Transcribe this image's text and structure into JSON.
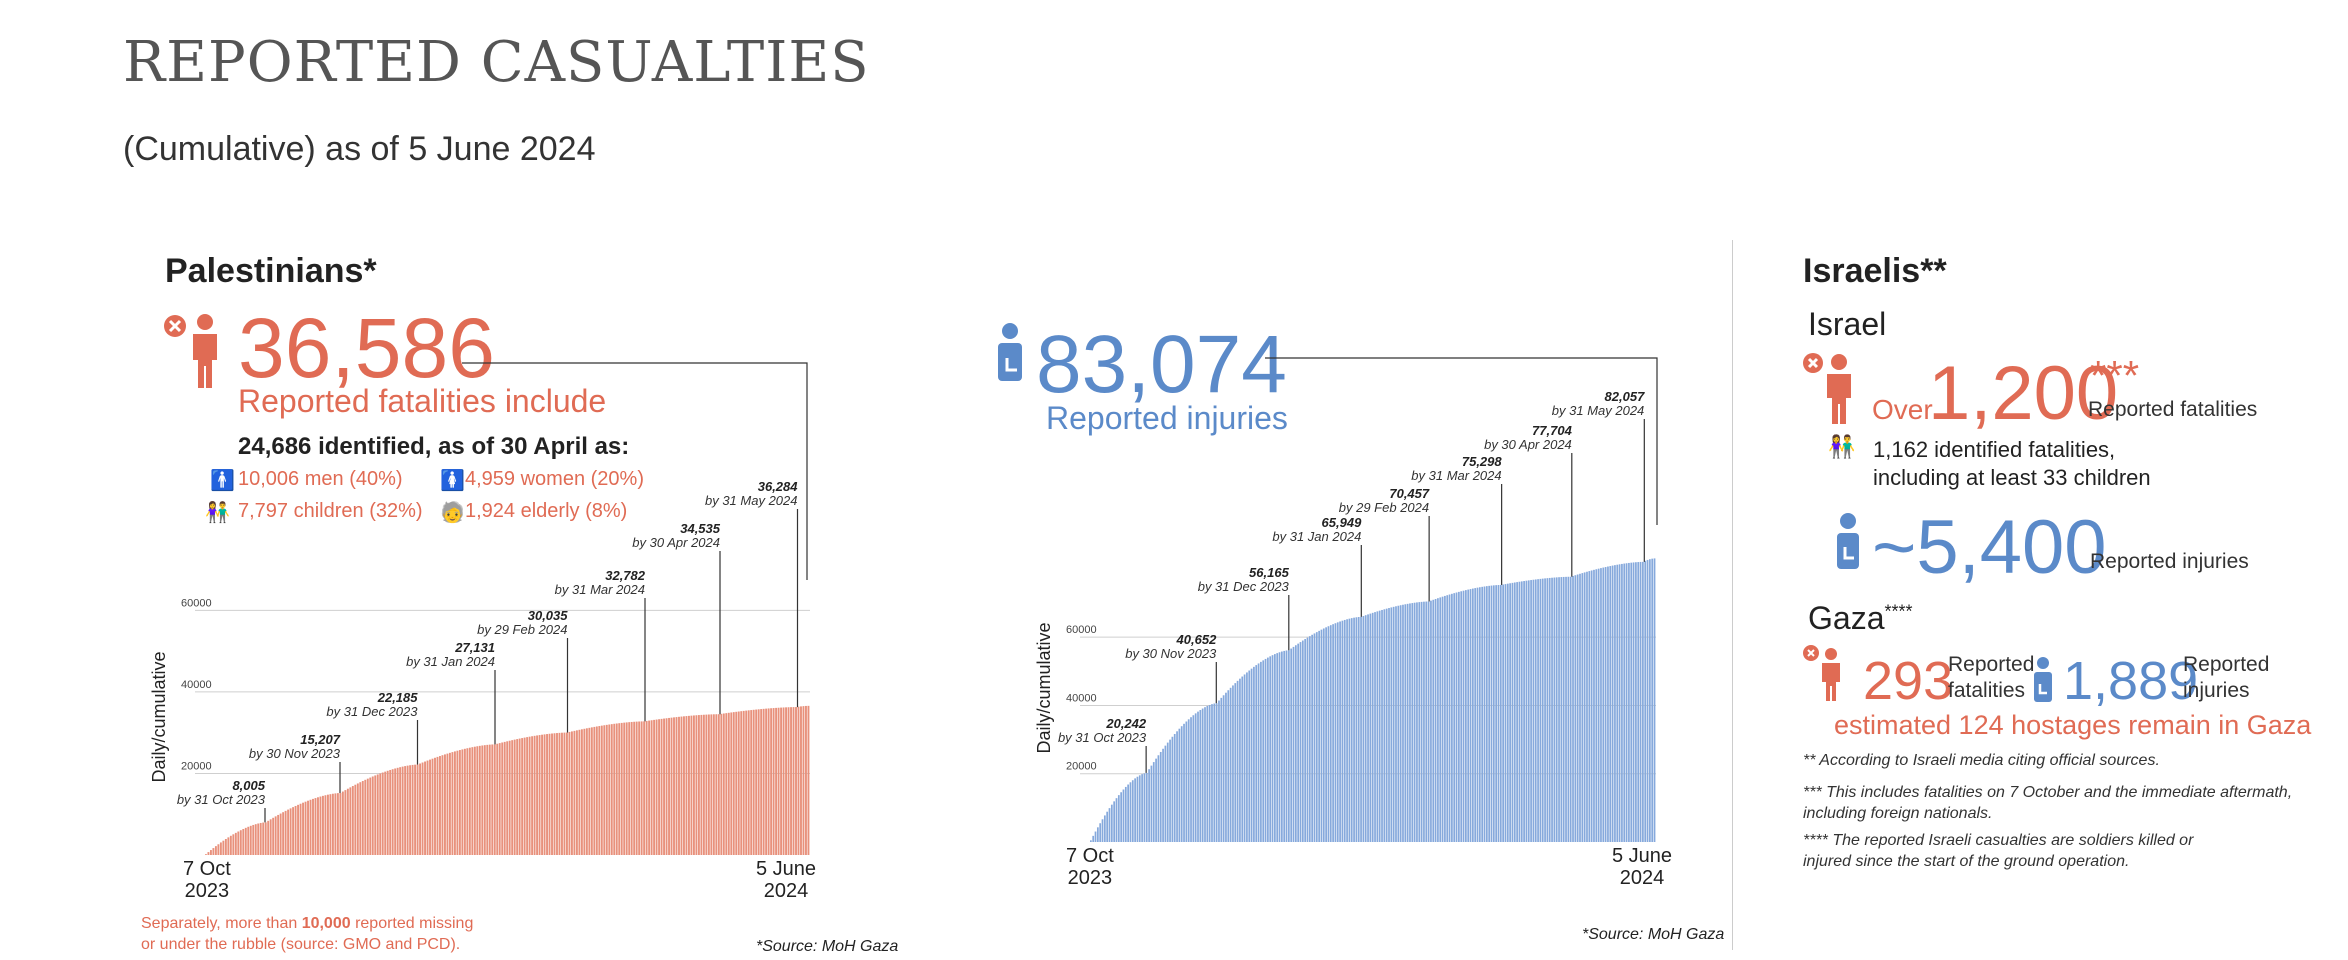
{
  "title": "REPORTED CASUALTIES",
  "subtitle": "(Cumulative) as of 5 June 2024",
  "palestinians": {
    "heading": "Palestinians*",
    "fatalities_value": "36,586",
    "fatalities_label": "Reported fatalities include",
    "identified": "24,686 identified, as of 30 April as:",
    "men": "10,006 men (40%)",
    "women": "4,959 women (20%)",
    "children": "7,797 children (32%)",
    "elderly": "1,924 elderly (8%)",
    "injuries_value": "83,074",
    "injuries_label": "Reported injuries",
    "missing_note_pre": "Separately, more than ",
    "missing_note_bold": "10,000",
    "missing_note_post": " reported missing",
    "missing_note_line2": "or under the rubble (source: GMO and PCD).",
    "source1": "*Source: MoH Gaza",
    "source2": "*Source: MoH Gaza"
  },
  "israelis": {
    "heading": "Israelis**",
    "israel_heading": "Israel",
    "over": "Over",
    "fatalities_value": "1,200",
    "fatalities_stars": "***",
    "fatalities_label": "Reported fatalities",
    "identified_line1": "1,162 identified fatalities,",
    "identified_line2": "including at least 33 children",
    "injuries_value": "~5,400",
    "injuries_label": "Reported injuries",
    "gaza_heading": "Gaza",
    "gaza_stars": "****",
    "gaza_fatalities": "293",
    "gaza_fatalities_label1": "Reported",
    "gaza_fatalities_label2": "fatalities",
    "gaza_injuries": "1,889",
    "gaza_injuries_label1": "Reported",
    "gaza_injuries_label2": "injuries",
    "hostages": "estimated 124 hostages remain in Gaza",
    "note1": "** According to Israeli media citing official sources.",
    "note2a": "*** This includes fatalities on 7 October and the immediate aftermath,",
    "note2b": "including foreign nationals.",
    "note3a": "**** The reported Israeli casualties are soldiers killed or",
    "note3b": "injured since the start of the ground operation."
  },
  "colors": {
    "red": "#e06b54",
    "red_bar": "#e8917c",
    "blue": "#5b8ac9",
    "blue_bar": "#86a9dc"
  },
  "chart_data": [
    {
      "type": "bar",
      "name": "fatalities",
      "ylabel": "Daily/cumulative",
      "ylim": [
        0,
        65000
      ],
      "yticks": [
        20000,
        40000,
        60000
      ],
      "x_start_label": [
        "7 Oct",
        "2023"
      ],
      "x_end_label": [
        "5 June",
        "2024"
      ],
      "x": [
        "2023-10-07",
        "2023-10-31",
        "2023-11-30",
        "2023-12-31",
        "2024-01-31",
        "2024-02-29",
        "2024-03-31",
        "2024-04-30",
        "2024-05-31",
        "2024-06-05"
      ],
      "values": [
        200,
        8005,
        15207,
        22185,
        27131,
        30035,
        32782,
        34535,
        36284,
        36586
      ],
      "annotations": [
        {
          "value": "8,005",
          "label": "by 31 Oct 2023",
          "x": "2023-10-31"
        },
        {
          "value": "15,207",
          "label": "by 30 Nov 2023",
          "x": "2023-11-30"
        },
        {
          "value": "22,185",
          "label": "by 31 Dec 2023",
          "x": "2023-12-31"
        },
        {
          "value": "27,131",
          "label": "by 31 Jan 2024",
          "x": "2024-01-31"
        },
        {
          "value": "30,035",
          "label": "by 29 Feb 2024",
          "x": "2024-02-29"
        },
        {
          "value": "32,782",
          "label": "by 31 Mar 2024",
          "x": "2024-03-31"
        },
        {
          "value": "34,535",
          "label": "by 30 Apr 2024",
          "x": "2024-04-30"
        },
        {
          "value": "36,284",
          "label": "by 31 May 2024",
          "x": "2024-05-31"
        }
      ]
    },
    {
      "type": "bar",
      "name": "injuries",
      "ylabel": "Daily/cumulative",
      "ylim": [
        0,
        87000
      ],
      "yticks": [
        20000,
        40000,
        60000
      ],
      "x_start_label": [
        "7 Oct",
        "2023"
      ],
      "x_end_label": [
        "5 June",
        "2024"
      ],
      "x": [
        "2023-10-07",
        "2023-10-31",
        "2023-11-30",
        "2023-12-31",
        "2024-01-31",
        "2024-02-29",
        "2024-03-31",
        "2024-04-30",
        "2024-05-31",
        "2024-06-05"
      ],
      "values": [
        500,
        20242,
        40652,
        56165,
        65949,
        70457,
        75298,
        77704,
        82057,
        83074
      ],
      "annotations": [
        {
          "value": "20,242",
          "label": "by 31 Oct 2023",
          "x": "2023-10-31"
        },
        {
          "value": "40,652",
          "label": "by 30 Nov 2023",
          "x": "2023-11-30"
        },
        {
          "value": "56,165",
          "label": "by 31 Dec 2023",
          "x": "2023-12-31"
        },
        {
          "value": "65,949",
          "label": "by 31 Jan 2024",
          "x": "2024-01-31"
        },
        {
          "value": "70,457",
          "label": "by 29 Feb 2024",
          "x": "2024-02-29"
        },
        {
          "value": "75,298",
          "label": "by 31 Mar 2024",
          "x": "2024-03-31"
        },
        {
          "value": "77,704",
          "label": "by 30 Apr 2024",
          "x": "2024-04-30"
        },
        {
          "value": "82,057",
          "label": "by 31 May 2024",
          "x": "2024-05-31"
        }
      ]
    }
  ]
}
